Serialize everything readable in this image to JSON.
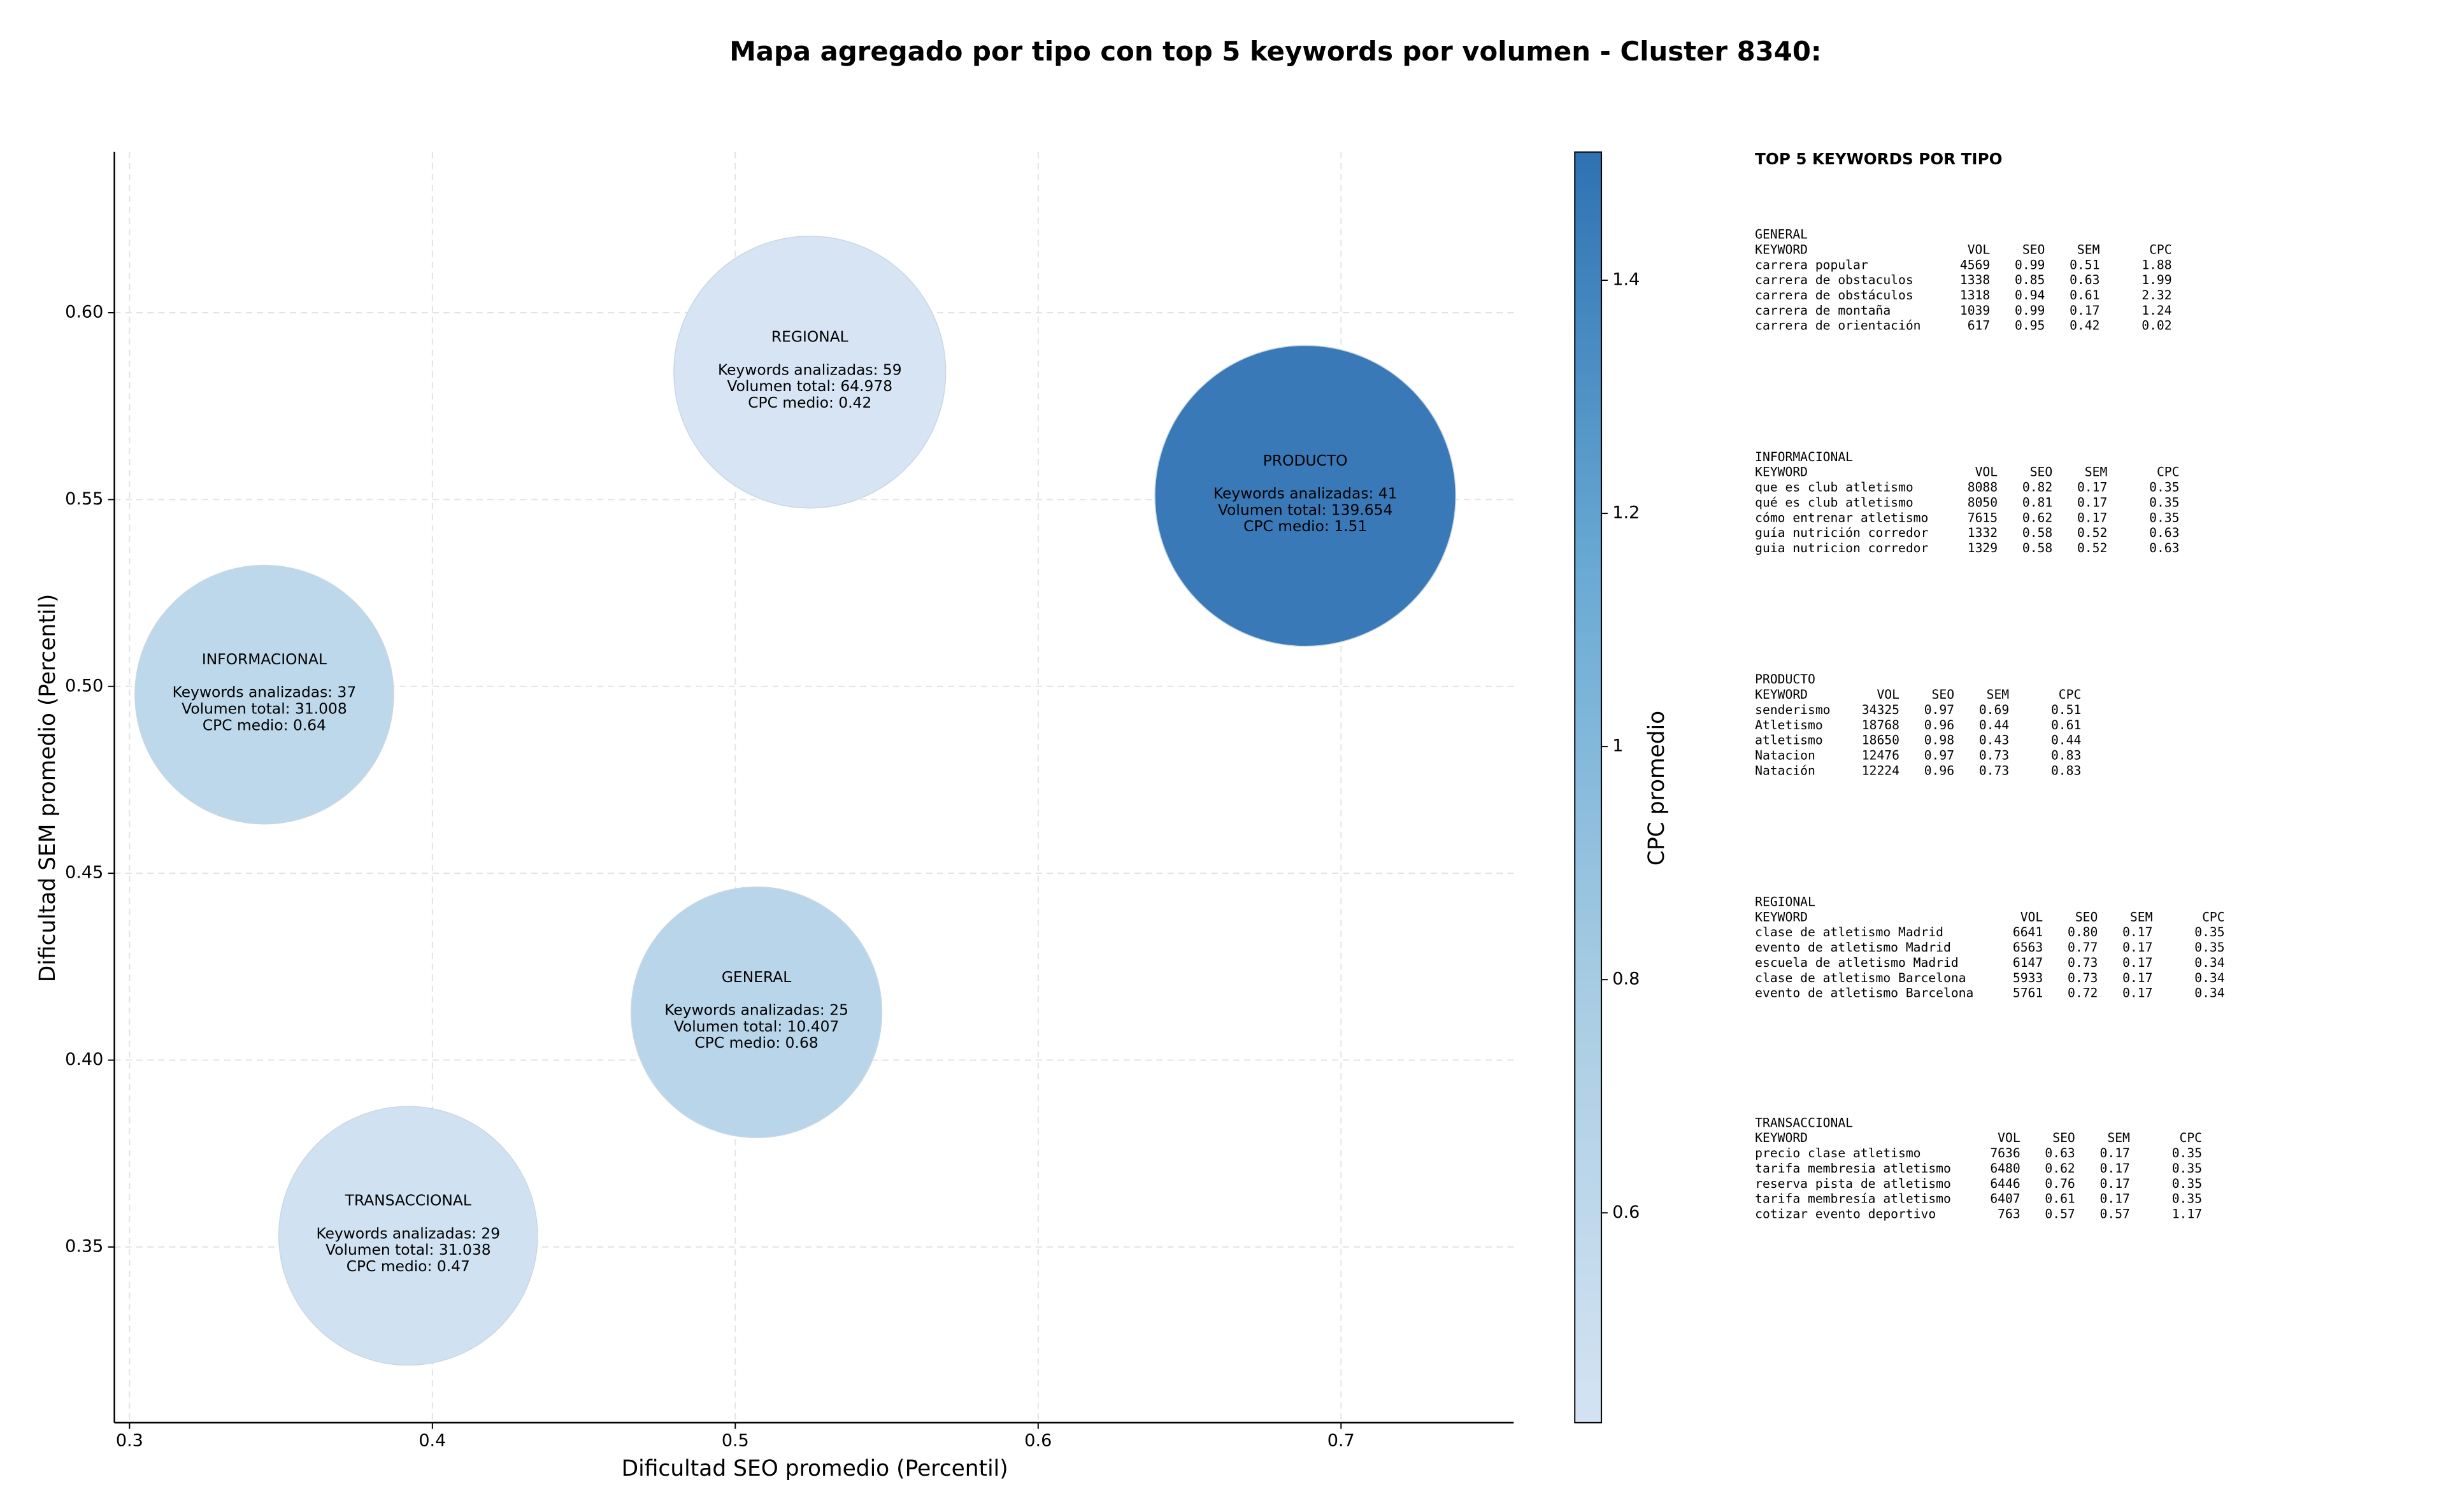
{
  "chart_data": {
    "type": "bubble",
    "title": "Mapa agregado por tipo con top 5 keywords por volumen - Cluster 8340:",
    "x_label": "Dificultad SEO promedio (Percentil)",
    "y_label": "Dificultad SEM promedio (Percentil)",
    "xlim": [
      0.295,
      0.757
    ],
    "xticks": [
      0.3,
      0.4,
      0.5,
      0.6,
      0.7
    ],
    "ylim": [
      0.303,
      0.643
    ],
    "yticks": [
      {
        "value": 0.35,
        "label": "0.35"
      },
      {
        "value": 0.4,
        "label": "0.40"
      },
      {
        "value": 0.45,
        "label": "0.45"
      },
      {
        "value": 0.5,
        "label": "0.50"
      },
      {
        "value": 0.55,
        "label": "0.55"
      },
      {
        "value": 0.6,
        "label": "0.60"
      }
    ],
    "grid": true,
    "categories": [
      "REGIONAL",
      "PRODUCTO",
      "INFORMACIONAL",
      "GENERAL",
      "TRANSACCIONAL"
    ],
    "x": [
      0.5246,
      0.6882,
      0.3445,
      0.507,
      0.392
    ],
    "values": [
      0.5841,
      0.551,
      0.4978,
      0.4128,
      0.353
    ],
    "volumes": [
      64978,
      139654,
      31008,
      10407,
      31038
    ],
    "cpc": [
      0.42,
      1.51,
      0.64,
      0.68,
      0.47
    ],
    "annotations": [
      [
        "Keywords analizadas: 59",
        "Volumen total: 64.978",
        "CPC medio: 0.42"
      ],
      [
        "Keywords analizadas: 41",
        "Volumen total: 139.654",
        "CPC medio: 1.51"
      ],
      [
        "Keywords analizadas: 37",
        "Volumen total: 31.008",
        "CPC medio: 0.64"
      ],
      [
        "Keywords analizadas: 25",
        "Volumen total: 10.407",
        "CPC medio: 0.68"
      ],
      [
        "Keywords analizadas: 29",
        "Volumen total: 31.038",
        "CPC medio: 0.47"
      ]
    ],
    "colorbar": {
      "label": "CPC promedio",
      "lim": [
        0.42,
        1.51
      ],
      "ticks": [
        0.6,
        0.8,
        1.0,
        1.2,
        1.4
      ],
      "colors": [
        "#d4e3f3",
        "#a8cde3",
        "#6aaad4",
        "#2e72b3"
      ]
    },
    "top_keywords": {
      "title": "TOP 5 KEYWORDS POR TIPO",
      "groups": [
        {
          "name": "GENERAL",
          "header": [
            "KEYWORD",
            "VOL",
            "SEO",
            "SEM",
            "CPC"
          ],
          "rows": [
            [
              "carrera popular",
              "4569",
              "0.99",
              "0.51",
              "1.88"
            ],
            [
              "carrera de obstaculos",
              "1338",
              "0.85",
              "0.63",
              "1.99"
            ],
            [
              "carrera de obstáculos",
              "1318",
              "0.94",
              "0.61",
              "2.32"
            ],
            [
              "carrera de montaña",
              "1039",
              "0.99",
              "0.17",
              "1.24"
            ],
            [
              "carrera de orientación",
              "617",
              "0.95",
              "0.42",
              "0.02"
            ]
          ]
        },
        {
          "name": "INFORMACIONAL",
          "header": [
            "KEYWORD",
            "VOL",
            "SEO",
            "SEM",
            "CPC"
          ],
          "rows": [
            [
              "que es club atletismo",
              "8088",
              "0.82",
              "0.17",
              "0.35"
            ],
            [
              "qué es club atletismo",
              "8050",
              "0.81",
              "0.17",
              "0.35"
            ],
            [
              "cómo entrenar atletismo",
              "7615",
              "0.62",
              "0.17",
              "0.35"
            ],
            [
              "guía nutrición corredor",
              "1332",
              "0.58",
              "0.52",
              "0.63"
            ],
            [
              "guia nutricion corredor",
              "1329",
              "0.58",
              "0.52",
              "0.63"
            ]
          ]
        },
        {
          "name": "PRODUCTO",
          "header": [
            "KEYWORD",
            "VOL",
            "SEO",
            "SEM",
            "CPC"
          ],
          "rows": [
            [
              "senderismo",
              "34325",
              "0.97",
              "0.69",
              "0.51"
            ],
            [
              "Atletismo",
              "18768",
              "0.96",
              "0.44",
              "0.61"
            ],
            [
              "atletismo",
              "18650",
              "0.98",
              "0.43",
              "0.44"
            ],
            [
              "Natacion",
              "12476",
              "0.97",
              "0.73",
              "0.83"
            ],
            [
              "Natación",
              "12224",
              "0.96",
              "0.73",
              "0.83"
            ]
          ]
        },
        {
          "name": "REGIONAL",
          "header": [
            "KEYWORD",
            "VOL",
            "SEO",
            "SEM",
            "CPC"
          ],
          "rows": [
            [
              "clase de atletismo Madrid",
              "6641",
              "0.80",
              "0.17",
              "0.35"
            ],
            [
              "evento de atletismo Madrid",
              "6563",
              "0.77",
              "0.17",
              "0.35"
            ],
            [
              "escuela de atletismo Madrid",
              "6147",
              "0.73",
              "0.17",
              "0.34"
            ],
            [
              "clase de atletismo Barcelona",
              "5933",
              "0.73",
              "0.17",
              "0.34"
            ],
            [
              "evento de atletismo Barcelona",
              "5761",
              "0.72",
              "0.17",
              "0.34"
            ]
          ]
        },
        {
          "name": "TRANSACCIONAL",
          "header": [
            "KEYWORD",
            "VOL",
            "SEO",
            "SEM",
            "CPC"
          ],
          "rows": [
            [
              "precio clase atletismo",
              "7636",
              "0.63",
              "0.17",
              "0.35"
            ],
            [
              "tarifa membresia atletismo",
              "6480",
              "0.62",
              "0.17",
              "0.35"
            ],
            [
              "reserva pista de atletismo",
              "6446",
              "0.76",
              "0.17",
              "0.35"
            ],
            [
              "tarifa membresía atletismo",
              "6407",
              "0.61",
              "0.17",
              "0.35"
            ],
            [
              "cotizar evento deportivo",
              "763",
              "0.57",
              "0.57",
              "1.17"
            ]
          ]
        }
      ]
    }
  }
}
